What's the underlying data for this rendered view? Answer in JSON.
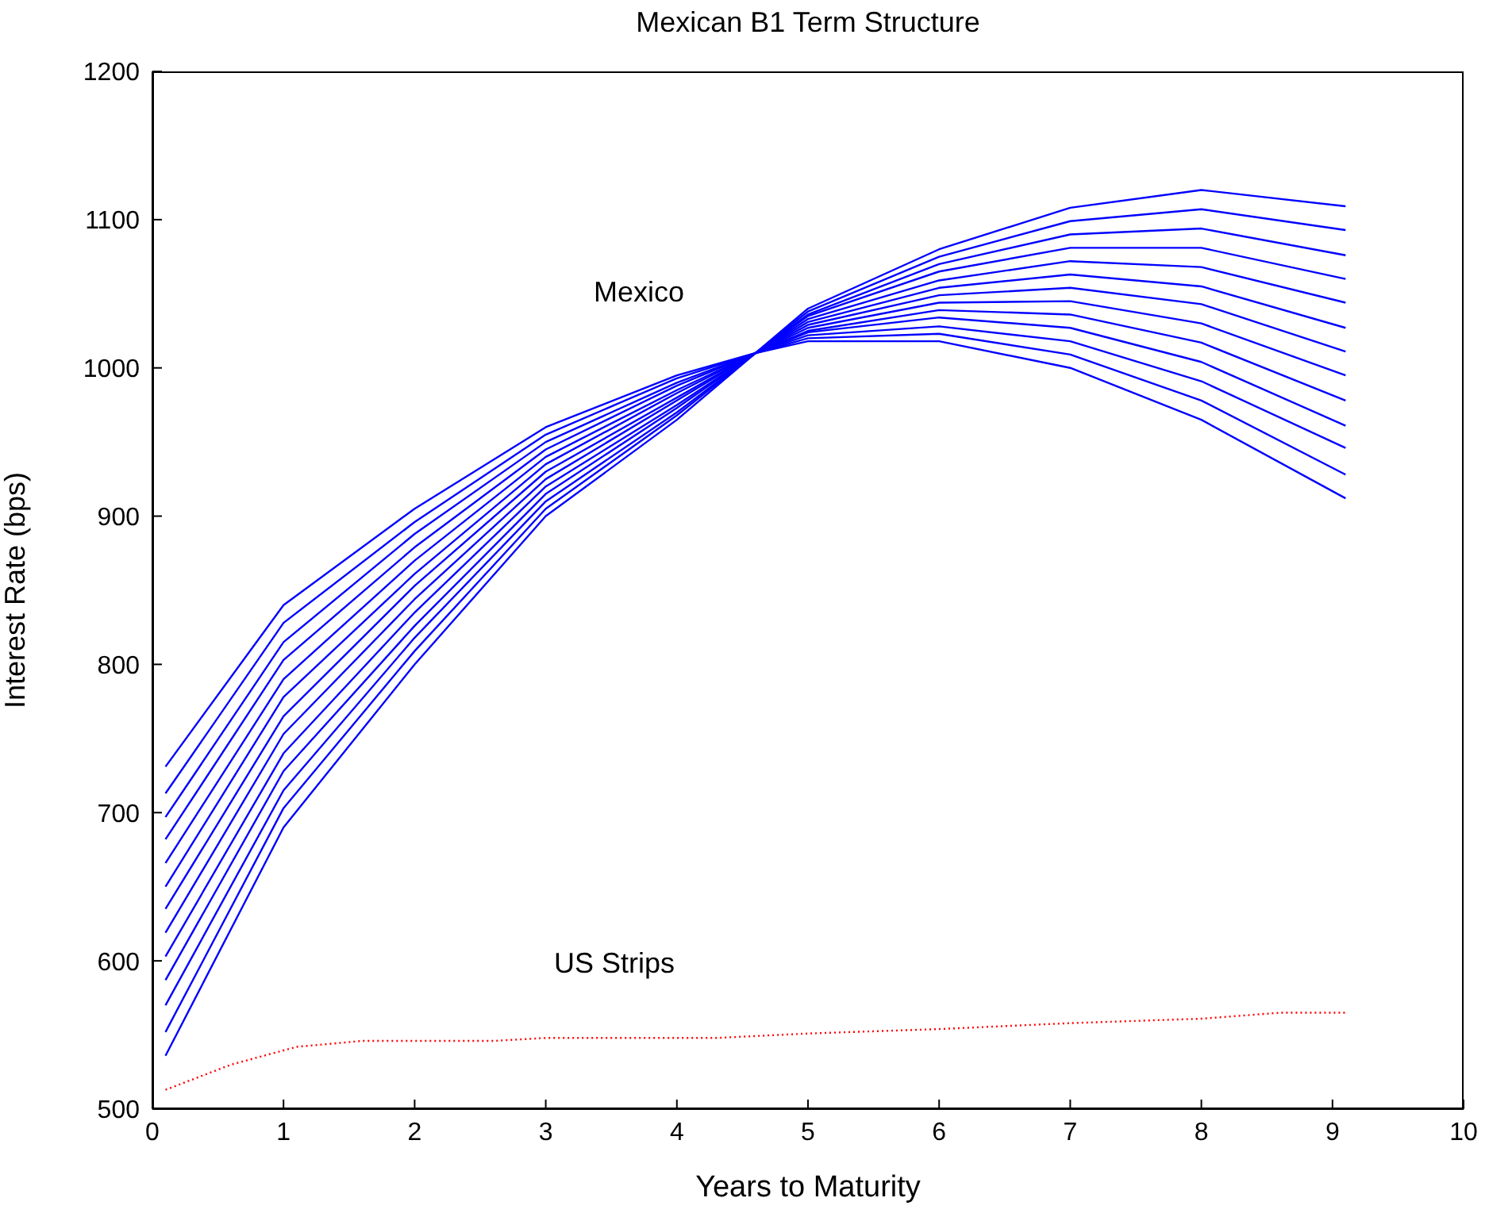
{
  "chart_data": {
    "type": "line",
    "title": "Mexican B1 Term Structure",
    "xlabel": "Years to Maturity",
    "ylabel": "Interest Rate (bps)",
    "xlim": [
      0,
      10
    ],
    "xticks": [
      0,
      1,
      2,
      3,
      4,
      5,
      6,
      7,
      8,
      9,
      10
    ],
    "ylim": [
      500,
      1200
    ],
    "yticks": [
      500,
      600,
      700,
      800,
      900,
      1000,
      1100,
      1200
    ],
    "x": [
      0.1,
      1,
      2,
      3,
      4,
      4.6,
      5,
      6,
      7,
      8,
      9.1
    ],
    "line_style": "solid",
    "marker": "none",
    "series": [
      {
        "color": "#0000ff",
        "values": [
          731,
          840,
          905,
          960,
          995,
          1010,
          1018,
          1018,
          1000,
          965,
          912
        ]
      },
      {
        "color": "#0000ff",
        "values": [
          713,
          828,
          896,
          955,
          993,
          1010,
          1020,
          1023,
          1009,
          978,
          928
        ]
      },
      {
        "color": "#0000ff",
        "values": [
          697,
          815,
          888,
          950,
          990,
          1010,
          1022,
          1028,
          1018,
          991,
          946
        ]
      },
      {
        "color": "#0000ff",
        "values": [
          682,
          803,
          879,
          945,
          988,
          1010,
          1024,
          1034,
          1027,
          1004,
          961
        ]
      },
      {
        "color": "#0000ff",
        "values": [
          666,
          790,
          870,
          940,
          985,
          1010,
          1025,
          1039,
          1036,
          1017,
          978
        ]
      },
      {
        "color": "#0000ff",
        "values": [
          650,
          778,
          861,
          935,
          983,
          1010,
          1027,
          1044,
          1045,
          1030,
          995
        ]
      },
      {
        "color": "#0000ff",
        "values": [
          635,
          765,
          853,
          930,
          980,
          1010,
          1029,
          1049,
          1054,
          1043,
          1011
        ]
      },
      {
        "color": "#0000ff",
        "values": [
          619,
          753,
          844,
          925,
          978,
          1010,
          1031,
          1054,
          1063,
          1055,
          1027
        ]
      },
      {
        "color": "#0000ff",
        "values": [
          603,
          740,
          835,
          920,
          975,
          1010,
          1033,
          1059,
          1072,
          1068,
          1044
        ]
      },
      {
        "color": "#0000ff",
        "values": [
          587,
          728,
          826,
          915,
          973,
          1010,
          1035,
          1065,
          1081,
          1081,
          1060
        ]
      },
      {
        "color": "#0000ff",
        "values": [
          570,
          715,
          818,
          910,
          970,
          1010,
          1036,
          1070,
          1090,
          1094,
          1076
        ]
      },
      {
        "color": "#0000ff",
        "values": [
          552,
          703,
          809,
          905,
          968,
          1010,
          1038,
          1075,
          1099,
          1107,
          1093
        ]
      },
      {
        "color": "#0000ff",
        "values": [
          536,
          690,
          800,
          900,
          965,
          1010,
          1040,
          1080,
          1108,
          1120,
          1109
        ]
      },
      {
        "color": "#ff0000",
        "line_style": "dotted",
        "x": [
          0.1,
          0.6,
          1.1,
          1.6,
          2.6,
          3,
          4.3,
          5,
          6,
          7,
          8,
          8.6,
          9.1
        ],
        "values": [
          513,
          530,
          542,
          546,
          546,
          548,
          548,
          551,
          554,
          558,
          561,
          565,
          565
        ]
      }
    ],
    "annotations": [
      "Mexico",
      "US Strips"
    ]
  }
}
